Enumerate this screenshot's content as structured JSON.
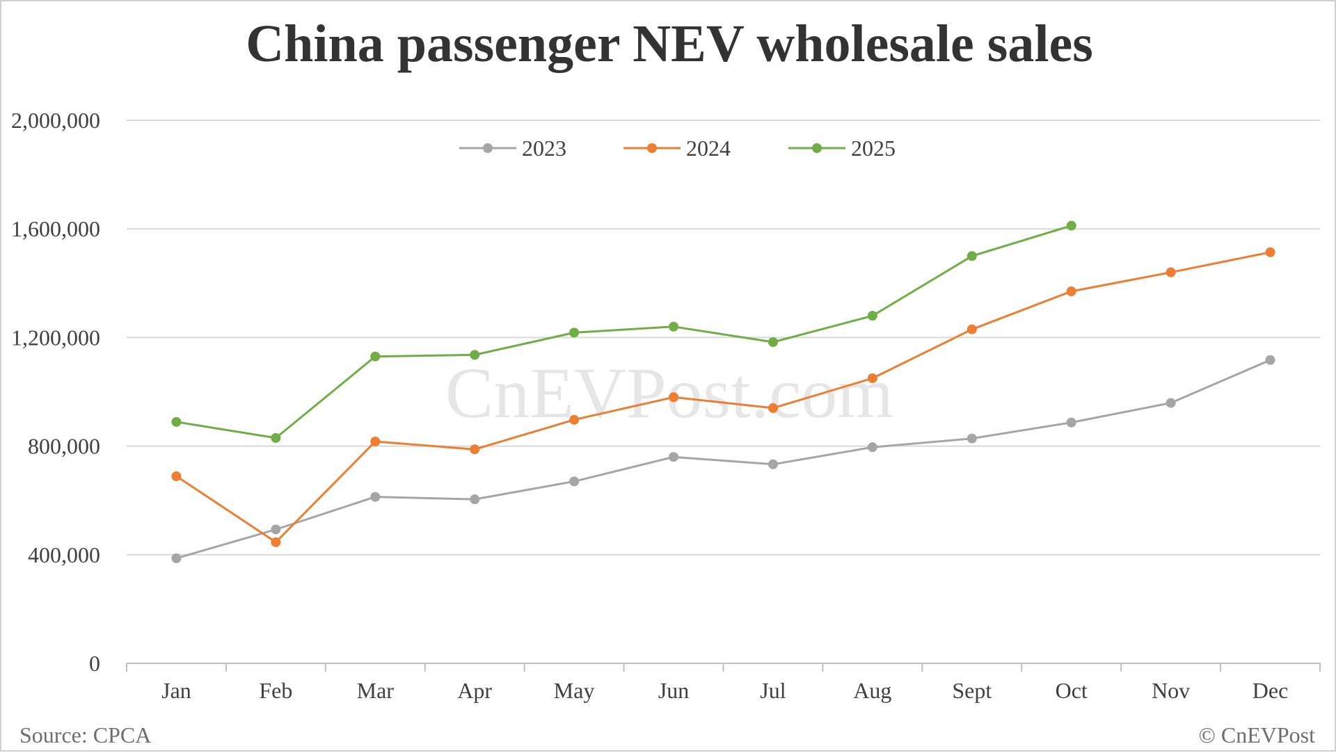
{
  "chart_data": {
    "type": "line",
    "title": "China passenger NEV wholesale sales",
    "xlabel": "",
    "ylabel": "",
    "categories": [
      "Jan",
      "Feb",
      "Mar",
      "Apr",
      "May",
      "Jun",
      "Jul",
      "Aug",
      "Sept",
      "Oct",
      "Nov",
      "Dec"
    ],
    "ylim": [
      0,
      2000000
    ],
    "yticks": [
      0,
      400000,
      800000,
      1200000,
      1600000,
      2000000
    ],
    "ytick_labels": [
      "0",
      "400,000",
      "800,000",
      "1,200,000",
      "1,600,000",
      "2,000,000"
    ],
    "grid": true,
    "legend_position": "top-center",
    "series": [
      {
        "name": "2023",
        "color": "#a5a5a5",
        "values": [
          387000,
          493000,
          613000,
          604000,
          670000,
          760000,
          733000,
          796000,
          828000,
          887000,
          959000,
          1117000
        ]
      },
      {
        "name": "2024",
        "color": "#ed7d31",
        "values": [
          689000,
          446000,
          817000,
          788000,
          897000,
          980000,
          940000,
          1050000,
          1230000,
          1370000,
          1440000,
          1514000
        ]
      },
      {
        "name": "2025",
        "color": "#70ad47",
        "values": [
          889000,
          830000,
          1130000,
          1136000,
          1218000,
          1240000,
          1183000,
          1280000,
          1500000,
          1612000,
          null,
          null
        ]
      }
    ]
  },
  "watermark": "CnEVPost.com",
  "footer": {
    "source": "Source: CPCA",
    "copyright": "© CnEVPost"
  }
}
